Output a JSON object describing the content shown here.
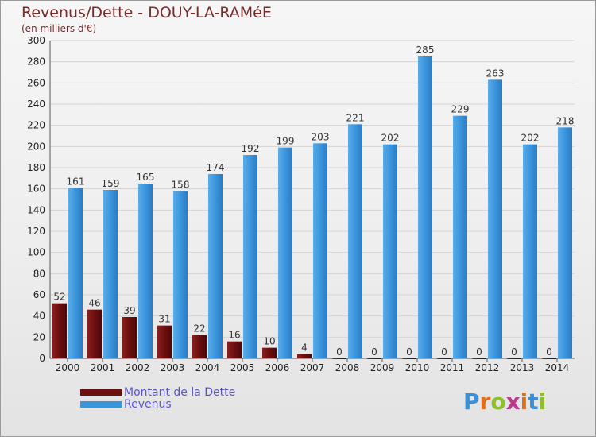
{
  "title": "Revenus/Dette - DOUY-LA-RAMéE",
  "subtitle": "(en milliers d'€)",
  "colors": {
    "dette": "#6b0f0f",
    "revenus": "#3b95dc",
    "title": "#7a2a2a",
    "legend_text": "#5a55cc"
  },
  "legend": {
    "dette_label": "Montant de la Dette",
    "revenus_label": "Revenus"
  },
  "logo": {
    "text": "Proxiti"
  },
  "chart_data": {
    "type": "bar",
    "categories": [
      "2000",
      "2001",
      "2002",
      "2003",
      "2004",
      "2005",
      "2006",
      "2007",
      "2008",
      "2009",
      "2010",
      "2011",
      "2012",
      "2013",
      "2014"
    ],
    "series": [
      {
        "name": "Montant de la Dette",
        "values": [
          52,
          46,
          39,
          31,
          22,
          16,
          10,
          4,
          0,
          0,
          0,
          0,
          0,
          0,
          0
        ]
      },
      {
        "name": "Revenus",
        "values": [
          161,
          159,
          165,
          158,
          174,
          192,
          199,
          203,
          221,
          202,
          285,
          229,
          263,
          202,
          218
        ]
      }
    ],
    "ylim": [
      0,
      300
    ],
    "yticks": [
      0,
      20,
      40,
      60,
      80,
      100,
      120,
      140,
      160,
      180,
      200,
      220,
      240,
      260,
      280,
      300
    ],
    "grid": true,
    "legend_position": "bottom-left"
  }
}
